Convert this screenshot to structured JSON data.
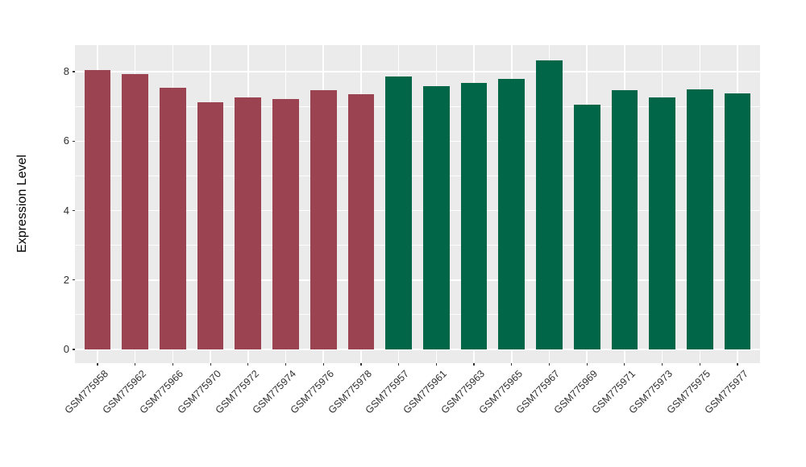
{
  "chart_data": {
    "type": "bar",
    "title": "",
    "xlabel": "",
    "ylabel": "Expression Level",
    "yticks": [
      0,
      2,
      4,
      6,
      8
    ],
    "y_minor_ticks": [
      1,
      3,
      5,
      7
    ],
    "ylim": [
      -0.42,
      8.77
    ],
    "grid": "on",
    "legend_position": "none",
    "x_tick_angle": 45,
    "categories": [
      "GSM775958",
      "GSM775962",
      "GSM775966",
      "GSM775970",
      "GSM775972",
      "GSM775974",
      "GSM775976",
      "GSM775978",
      "GSM775957",
      "GSM775961",
      "GSM775963",
      "GSM775965",
      "GSM775967",
      "GSM775969",
      "GSM775971",
      "GSM775973",
      "GSM775975",
      "GSM775977"
    ],
    "values": [
      8.05,
      7.93,
      7.54,
      7.12,
      7.26,
      7.22,
      7.47,
      7.35,
      7.85,
      7.58,
      7.67,
      7.79,
      8.33,
      7.06,
      7.46,
      7.25,
      7.5,
      7.38
    ],
    "bar_colors": [
      "#9B4350",
      "#9B4350",
      "#9B4350",
      "#9B4350",
      "#9B4350",
      "#9B4350",
      "#9B4350",
      "#9B4350",
      "#006647",
      "#006647",
      "#006647",
      "#006647",
      "#006647",
      "#006647",
      "#006647",
      "#006647",
      "#006647",
      "#006647"
    ],
    "palette": {
      "maroon_group": "#9B4350",
      "green_group": "#006647"
    },
    "panel_background": "#EBEBEB",
    "gridline_color": "#FFFFFF",
    "axis_text_color": "#303030"
  }
}
